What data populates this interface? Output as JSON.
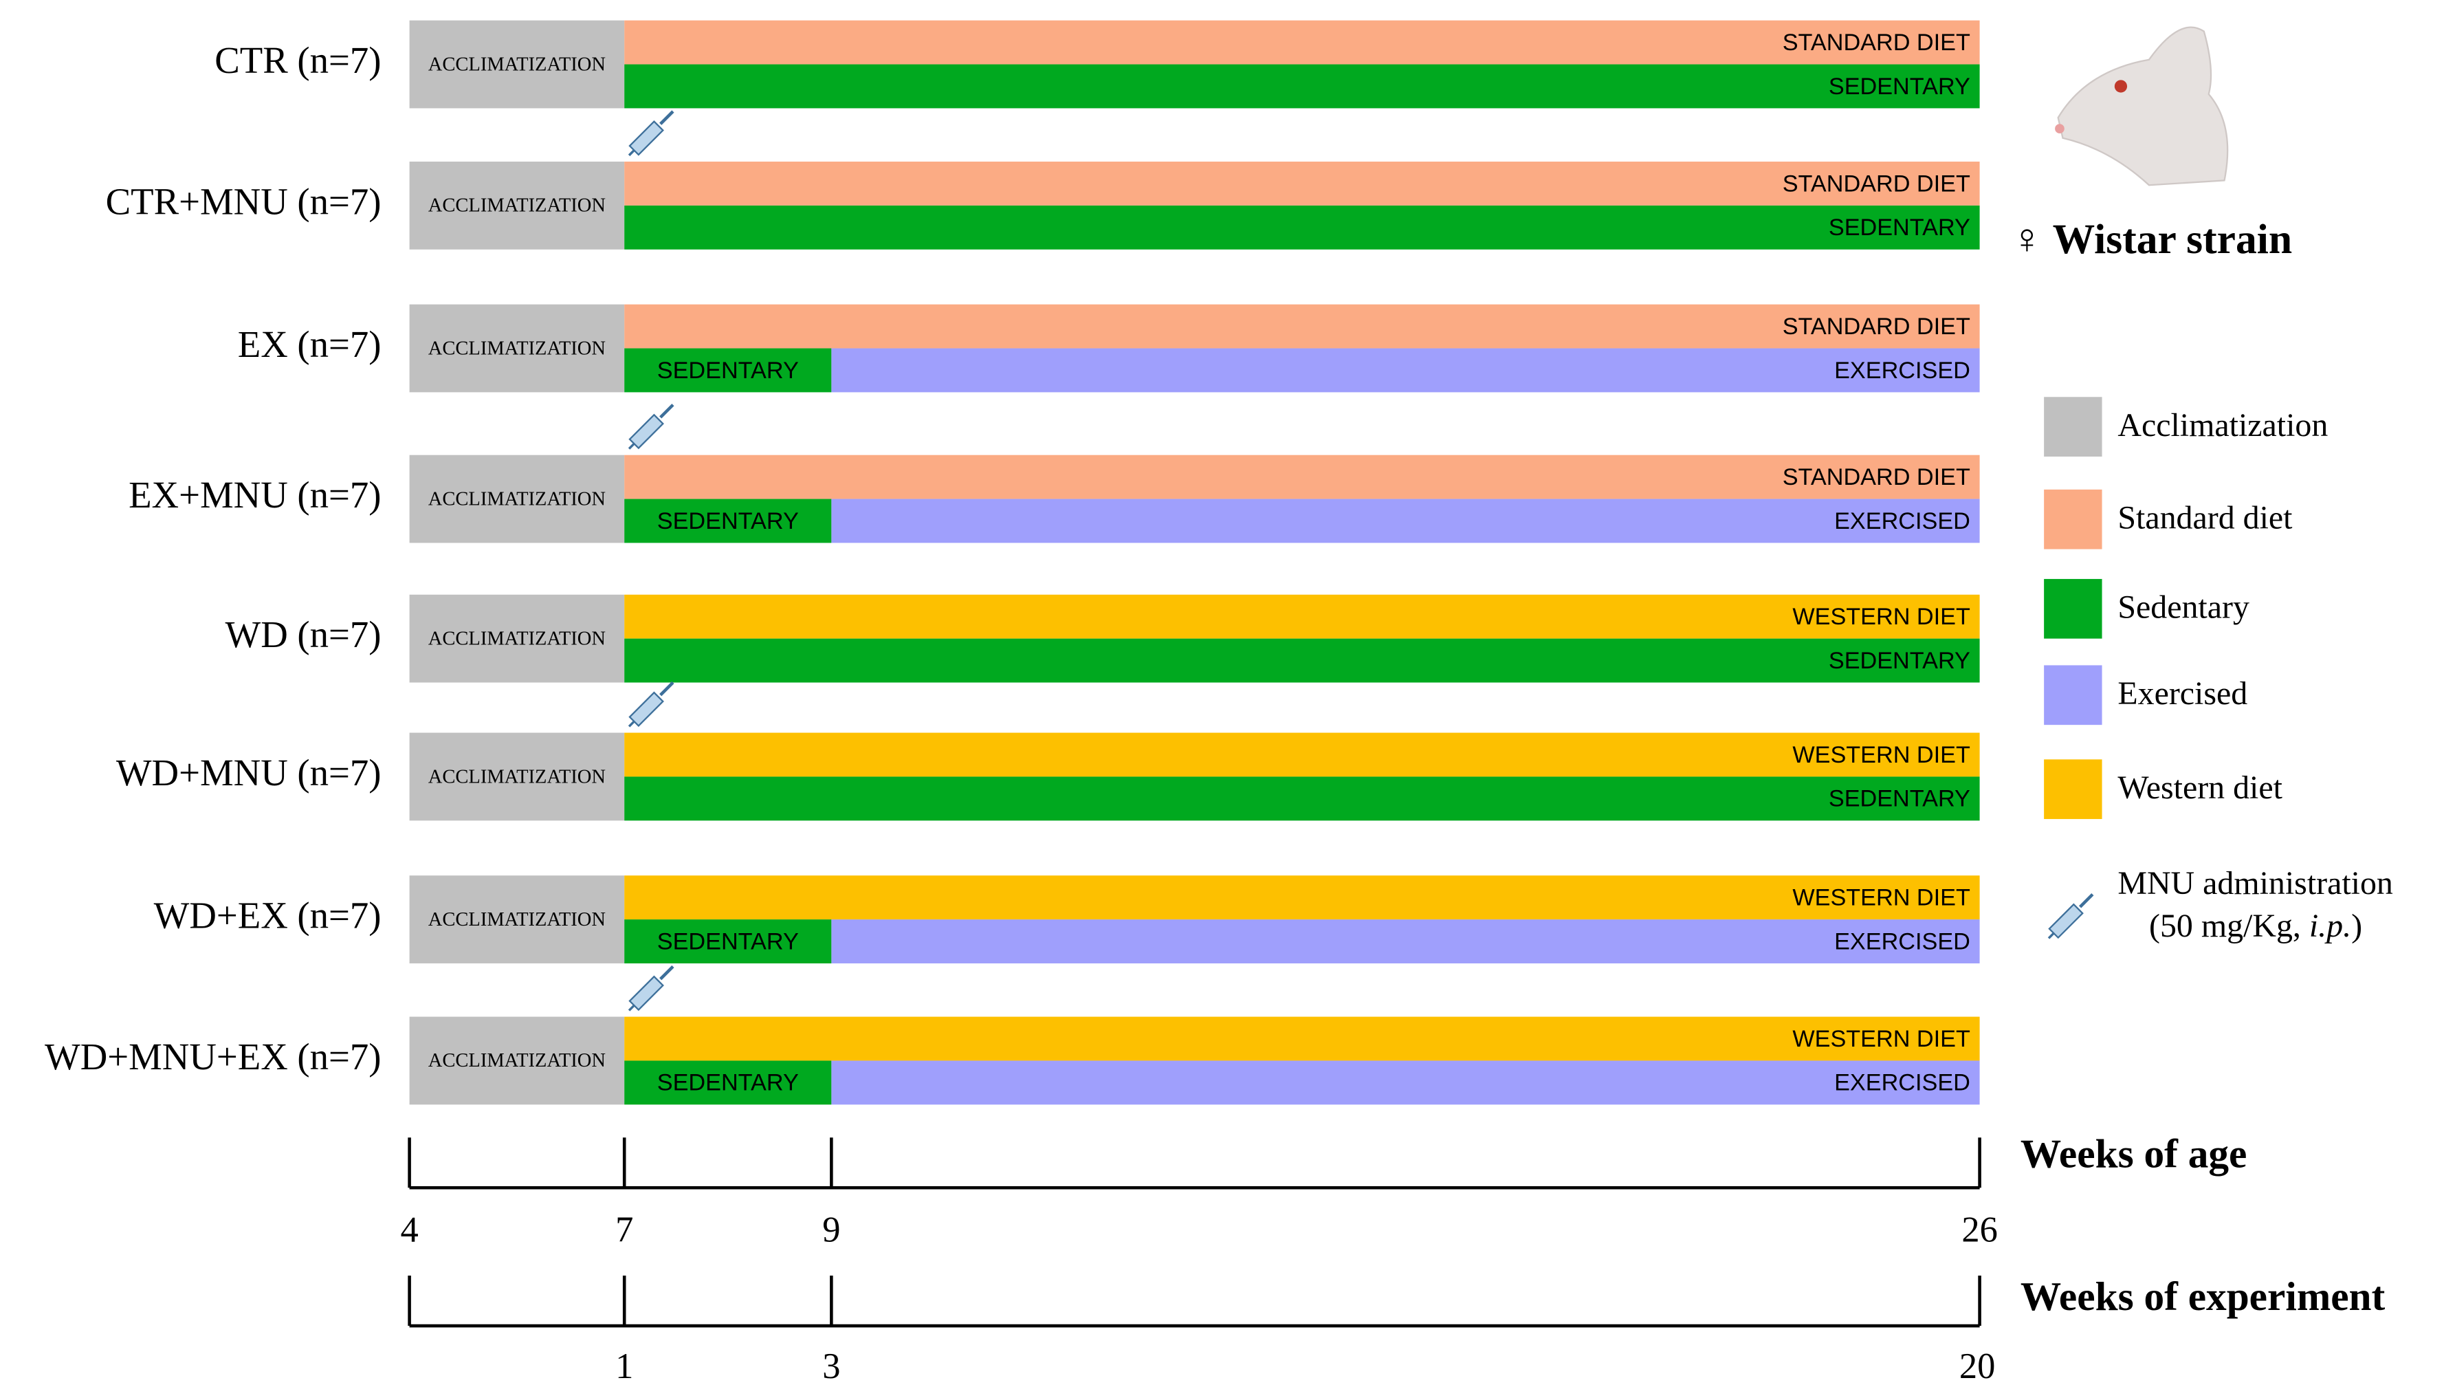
{
  "groups": [
    {
      "label": "CTR (n=7)",
      "acclimatization": "ACCLIMATIZATION",
      "mnu": false,
      "top": [
        {
          "text": "STANDARD DIET",
          "color": "#fbab84"
        }
      ],
      "bottom": [
        {
          "text": "SEDENTARY",
          "color": "#00a91f"
        }
      ]
    },
    {
      "label": "CTR+MNU (n=7)",
      "acclimatization": "ACCLIMATIZATION",
      "mnu": true,
      "top": [
        {
          "text": "STANDARD DIET",
          "color": "#fbab84"
        }
      ],
      "bottom": [
        {
          "text": "SEDENTARY",
          "color": "#00a91f"
        }
      ]
    },
    {
      "label": "EX (n=7)",
      "acclimatization": "ACCLIMATIZATION",
      "mnu": false,
      "top": [
        {
          "text": "STANDARD DIET",
          "color": "#fbab84"
        }
      ],
      "bottom": [
        {
          "text": "SEDENTARY",
          "color": "#00a91f"
        },
        {
          "text": "EXERCISED",
          "color": "#9f9ffc"
        }
      ]
    },
    {
      "label": "EX+MNU (n=7)",
      "acclimatization": "ACCLIMATIZATION",
      "mnu": true,
      "top": [
        {
          "text": "STANDARD DIET",
          "color": "#fbab84"
        }
      ],
      "bottom": [
        {
          "text": "SEDENTARY",
          "color": "#00a91f"
        },
        {
          "text": "EXERCISED",
          "color": "#9f9ffc"
        }
      ]
    },
    {
      "label": "WD (n=7)",
      "acclimatization": "ACCLIMATIZATION",
      "mnu": false,
      "top": [
        {
          "text": "WESTERN DIET",
          "color": "#fdc000"
        }
      ],
      "bottom": [
        {
          "text": "SEDENTARY",
          "color": "#00a91f"
        }
      ]
    },
    {
      "label": "WD+MNU (n=7)",
      "acclimatization": "ACCLIMATIZATION",
      "mnu": true,
      "top": [
        {
          "text": "WESTERN DIET",
          "color": "#fdc000"
        }
      ],
      "bottom": [
        {
          "text": "SEDENTARY",
          "color": "#00a91f"
        }
      ]
    },
    {
      "label": "WD+EX (n=7)",
      "acclimatization": "ACCLIMATIZATION",
      "mnu": false,
      "top": [
        {
          "text": "WESTERN DIET",
          "color": "#fdc000"
        }
      ],
      "bottom": [
        {
          "text": "SEDENTARY",
          "color": "#00a91f"
        },
        {
          "text": "EXERCISED",
          "color": "#9f9ffc"
        }
      ]
    },
    {
      "label": "WD+MNU+EX (n=7)",
      "acclimatization": "ACCLIMATIZATION",
      "mnu": true,
      "top": [
        {
          "text": "WESTERN DIET",
          "color": "#fdc000"
        }
      ],
      "bottom": [
        {
          "text": "SEDENTARY",
          "color": "#00a91f"
        },
        {
          "text": "EXERCISED",
          "color": "#9f9ffc"
        }
      ]
    }
  ],
  "strain": "♀ Wistar strain",
  "legend": [
    {
      "label": "Acclimatization",
      "color": "#c0c0c0"
    },
    {
      "label": "Standard diet",
      "color": "#fbab84"
    },
    {
      "label": "Sedentary",
      "color": "#00a91f"
    },
    {
      "label": "Exercised",
      "color": "#9f9ffc"
    },
    {
      "label": "Western diet",
      "color": "#fdc000"
    }
  ],
  "mnu_note": {
    "label": "MNU administration",
    "dose_before": "(50 mg/Kg, ",
    "dose_italic": "i.p.",
    "dose_after": ")"
  },
  "age_axis": {
    "title": "Weeks of age",
    "ticks": [
      "4",
      "7",
      "9",
      "26"
    ]
  },
  "experiment_axis": {
    "title": "Weeks of experiment",
    "ticks": [
      "1",
      "3",
      "20"
    ]
  }
}
